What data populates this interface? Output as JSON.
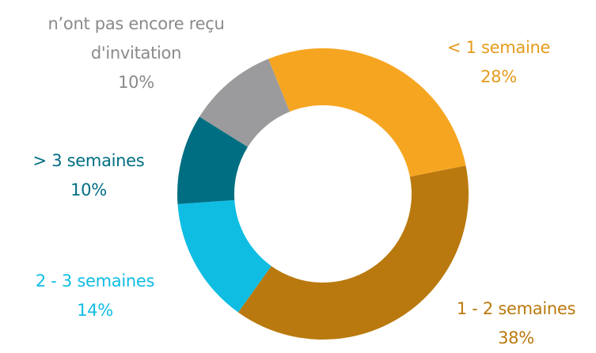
{
  "chart_data": {
    "type": "donut",
    "categories": [
      "< 1 semaine",
      "1 - 2 semaines",
      "2 - 3 semaines",
      "> 3 semaines",
      "n’ont pas encore reçu d'invitation"
    ],
    "values": [
      28,
      38,
      14,
      10,
      10
    ],
    "value_labels": [
      "28%",
      "38%",
      "14%",
      "10%",
      "10%"
    ],
    "colors": [
      "#f6a521",
      "#b9790e",
      "#0fbde3",
      "#006e82",
      "#9b9b9d"
    ]
  }
}
